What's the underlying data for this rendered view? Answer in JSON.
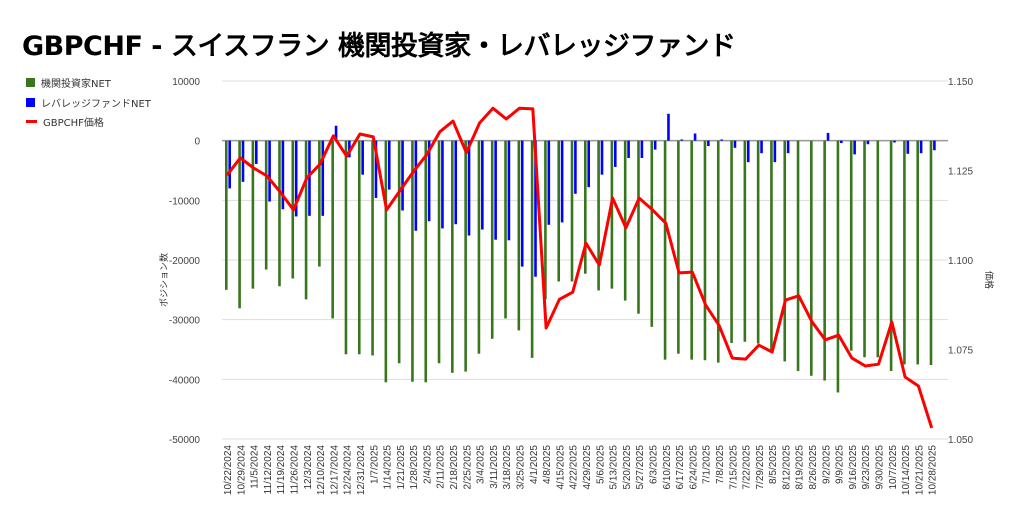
{
  "chart_data": {
    "type": "bar+line",
    "title": "GBPCHF - スイスフラン 機関投資家・レバレッジファンド",
    "ylabel": "ポジション数",
    "y2label": "価格",
    "ylim": [
      -50000,
      10000
    ],
    "y2lim": [
      1.05,
      1.15
    ],
    "yticks": [
      "10000",
      "0",
      "-10000",
      "-20000",
      "-30000",
      "-40000",
      "-50000"
    ],
    "y2ticks": [
      "1.150",
      "1.125",
      "1.100",
      "1.075",
      "1.050"
    ],
    "legend_position": "left",
    "categories": [
      "10/22/2024",
      "10/29/2024",
      "11/5/2024",
      "11/12/2024",
      "11/19/2024",
      "11/26/2024",
      "12/3/2024",
      "12/10/2024",
      "12/17/2024",
      "12/24/2024",
      "12/31/2024",
      "1/7/2025",
      "1/14/2025",
      "1/21/2025",
      "1/28/2025",
      "2/4/2025",
      "2/11/2025",
      "2/18/2025",
      "2/25/2025",
      "3/4/2025",
      "3/11/2025",
      "3/18/2025",
      "3/25/2025",
      "4/1/2025",
      "4/8/2025",
      "4/15/2025",
      "4/22/2025",
      "4/29/2025",
      "5/6/2025",
      "5/13/2025",
      "5/20/2025",
      "5/27/2025",
      "6/3/2025",
      "6/10/2025",
      "6/17/2025",
      "6/24/2025",
      "7/1/2025",
      "7/8/2025",
      "7/15/2025",
      "7/22/2025",
      "7/29/2025",
      "8/5/2025",
      "8/12/2025",
      "8/19/2025",
      "8/26/2025",
      "9/2/2025",
      "9/9/2025",
      "9/16/2025",
      "9/23/2025",
      "9/30/2025",
      "10/7/2025",
      "10/14/2025",
      "10/21/2025",
      "10/28/2025"
    ],
    "series": [
      {
        "name": "機関投資家NET",
        "type": "bar",
        "color": "#38761d",
        "values": [
          -25000,
          -28100,
          -24800,
          -21600,
          -24400,
          -23100,
          -26600,
          -21100,
          -29800,
          -35800,
          -35800,
          -36000,
          -40500,
          -37300,
          -40400,
          -40500,
          -37300,
          -38900,
          -38700,
          -35700,
          -33200,
          -29800,
          -31800,
          -36400,
          -26600,
          -23600,
          -23600,
          -22300,
          -25100,
          -24800,
          -26800,
          -29000,
          -31200,
          -36700,
          -35700,
          -36700,
          -36800,
          -37200,
          -33900,
          -33700,
          -34000,
          -35400,
          -37000,
          -38600,
          -39400,
          -40200,
          -42200,
          -35200,
          -36300,
          -36300,
          -38600,
          -37500,
          -37500,
          -37600
        ]
      },
      {
        "name": "レバレッジファンドNET",
        "type": "bar",
        "color": "#0000ff",
        "values": [
          -8000,
          -6900,
          -3900,
          -10200,
          -11500,
          -12700,
          -12600,
          -12600,
          2500,
          -2800,
          -5700,
          -9600,
          -8200,
          -11700,
          -15100,
          -13500,
          -14700,
          -14000,
          -15900,
          -14900,
          -16600,
          -16700,
          -21100,
          -22800,
          -14100,
          -13700,
          -8900,
          -7800,
          -5700,
          -4400,
          -2900,
          -2900,
          -1500,
          4500,
          200,
          1200,
          -900,
          200,
          -1200,
          -3600,
          -2100,
          -3600,
          -2100,
          0,
          0,
          1300,
          -400,
          -2300,
          -600,
          0,
          -300,
          -2200,
          -2100,
          -1600
        ]
      },
      {
        "name": "GBPCHF価格",
        "type": "line",
        "axis": "right",
        "color": "#ff0000",
        "values": [
          1.1237,
          1.1285,
          1.1257,
          1.1235,
          1.119,
          1.114,
          1.1229,
          1.1268,
          1.1347,
          1.129,
          1.1352,
          1.1344,
          1.114,
          1.1193,
          1.1246,
          1.1293,
          1.1358,
          1.1388,
          1.13,
          1.1383,
          1.1424,
          1.1394,
          1.1424,
          1.1422,
          1.081,
          1.089,
          1.091,
          1.1047,
          1.0986,
          1.1173,
          1.109,
          1.1173,
          1.114,
          1.1103,
          1.0964,
          1.0966,
          1.0874,
          1.0818,
          1.0726,
          1.0723,
          1.0762,
          1.0743,
          1.0888,
          1.09,
          1.0827,
          1.0777,
          1.079,
          1.0726,
          1.0704,
          1.0709,
          1.0827,
          1.0673,
          1.0648,
          1.0531
        ]
      }
    ]
  }
}
